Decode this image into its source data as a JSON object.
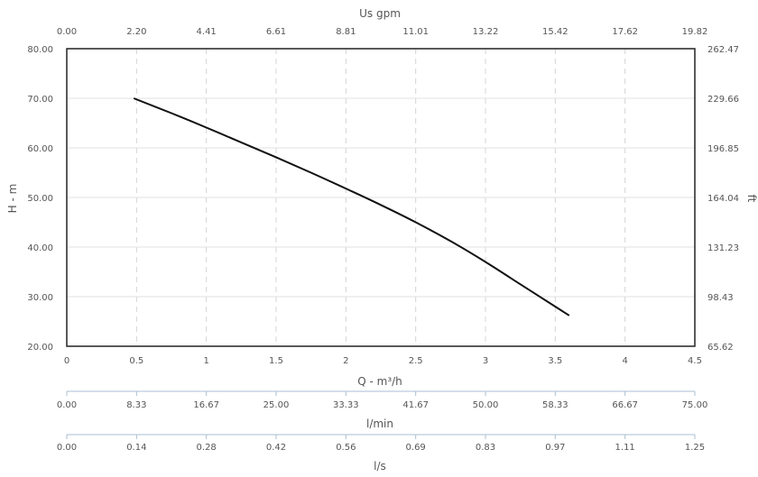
{
  "chart_data": {
    "type": "line",
    "series": [
      {
        "x": [
          0.48,
          0.75,
          1.0,
          1.25,
          1.5,
          1.75,
          2.0,
          2.25,
          2.5,
          2.75,
          3.0,
          3.25,
          3.5,
          3.6
        ],
        "y": [
          70.0,
          67.0,
          64.1,
          61.1,
          58.1,
          55.0,
          51.8,
          48.5,
          45.0,
          41.2,
          37.0,
          32.5,
          28.0,
          26.2
        ]
      }
    ],
    "xlim": [
      0,
      4.5
    ],
    "ylim": [
      20,
      80
    ],
    "grid": true,
    "axes": {
      "bottom": {
        "title": "Q - m³/h",
        "ticks": [
          "0",
          "0.5",
          "1",
          "1.5",
          "2",
          "2.5",
          "3",
          "3.5",
          "4",
          "4.5"
        ]
      },
      "top": {
        "title": "Us gpm",
        "ticks": [
          "0.00",
          "2.20",
          "4.41",
          "6.61",
          "8.81",
          "11.01",
          "13.22",
          "15.42",
          "17.62",
          "19.82"
        ]
      },
      "left": {
        "title": "H - m",
        "ticks": [
          "20.00",
          "30.00",
          "40.00",
          "50.00",
          "60.00",
          "70.00",
          "80.00"
        ]
      },
      "right": {
        "title": "ft",
        "ticks": [
          "65.62",
          "98.43",
          "131.23",
          "164.04",
          "196.85",
          "229.66",
          "262.47"
        ]
      },
      "lmin": {
        "title": "l/min",
        "ticks": [
          "0.00",
          "8.33",
          "16.67",
          "25.00",
          "33.33",
          "41.67",
          "50.00",
          "58.33",
          "66.67",
          "75.00"
        ]
      },
      "ls": {
        "title": "l/s",
        "ticks": [
          "0.00",
          "0.14",
          "0.28",
          "0.42",
          "0.56",
          "0.69",
          "0.83",
          "0.97",
          "1.11",
          "1.25"
        ]
      }
    }
  }
}
